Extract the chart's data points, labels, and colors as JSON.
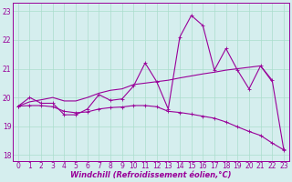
{
  "x": [
    0,
    1,
    2,
    3,
    4,
    5,
    6,
    7,
    8,
    9,
    10,
    11,
    12,
    13,
    14,
    15,
    16,
    17,
    18,
    19,
    20,
    21,
    22,
    23
  ],
  "line_main": [
    19.7,
    20.0,
    19.8,
    19.8,
    19.4,
    19.4,
    19.6,
    20.1,
    19.9,
    19.95,
    20.4,
    21.2,
    20.55,
    19.6,
    22.1,
    22.85,
    22.5,
    20.95,
    21.7,
    20.95,
    20.3,
    21.1,
    20.6,
    18.2
  ],
  "line_upper": [
    19.7,
    19.85,
    19.92,
    20.0,
    19.88,
    19.88,
    20.0,
    20.15,
    20.25,
    20.3,
    20.45,
    20.5,
    20.55,
    20.6,
    20.68,
    20.75,
    20.82,
    20.88,
    20.95,
    21.0,
    21.05,
    21.1,
    20.55,
    null
  ],
  "line_lower": [
    19.7,
    19.72,
    19.72,
    19.68,
    19.52,
    19.47,
    19.5,
    19.6,
    19.65,
    19.67,
    19.72,
    19.72,
    19.68,
    19.52,
    19.48,
    19.42,
    19.35,
    19.28,
    19.15,
    18.98,
    18.82,
    18.68,
    18.42,
    18.18
  ],
  "color": "#990099",
  "bg_color": "#d5eeee",
  "grid_color": "#aaddcc",
  "xlabel": "Windchill (Refroidissement éolien,°C)",
  "ylim": [
    17.8,
    23.3
  ],
  "xlim": [
    -0.5,
    23.5
  ],
  "yticks": [
    18,
    19,
    20,
    21,
    22,
    23
  ],
  "xticks": [
    0,
    1,
    2,
    3,
    4,
    5,
    6,
    7,
    8,
    9,
    10,
    11,
    12,
    13,
    14,
    15,
    16,
    17,
    18,
    19,
    20,
    21,
    22,
    23
  ],
  "tick_fontsize": 5.5,
  "label_fontsize": 6.0,
  "line_width": 0.8,
  "marker_size": 2.5
}
